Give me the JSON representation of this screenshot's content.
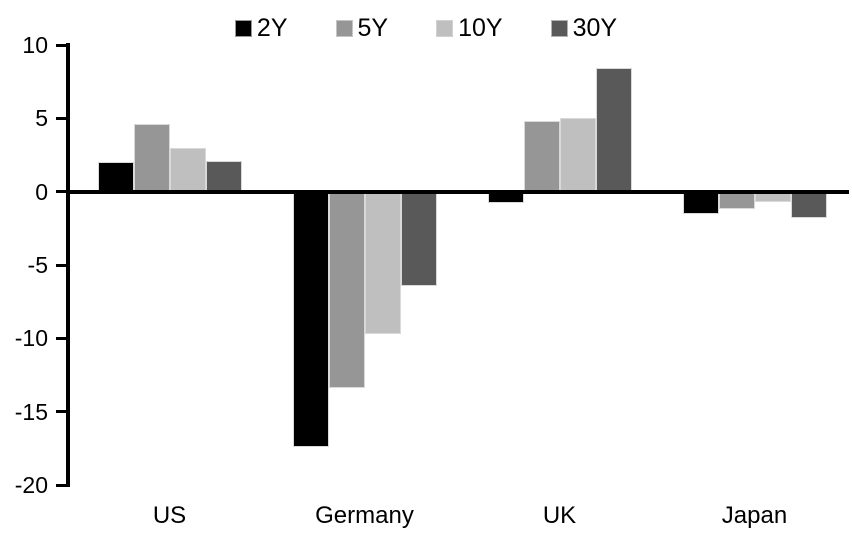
{
  "chart_data": {
    "type": "bar",
    "title": "",
    "categories": [
      "US",
      "Germany",
      "UK",
      "Japan"
    ],
    "series": [
      {
        "name": "2Y",
        "color": "#000000",
        "values": [
          2.0,
          -17.4,
          -0.8,
          -1.5
        ]
      },
      {
        "name": "5Y",
        "color": "#969696",
        "values": [
          4.6,
          -13.4,
          4.8,
          -1.2
        ]
      },
      {
        "name": "10Y",
        "color": "#BFBFBF",
        "values": [
          3.0,
          -9.7,
          5.0,
          -0.7
        ]
      },
      {
        "name": "30Y",
        "color": "#595959",
        "values": [
          2.1,
          -6.4,
          8.4,
          -1.8
        ]
      }
    ],
    "ylim": [
      -20,
      10
    ],
    "yticks": [
      10,
      5,
      0,
      -5,
      -10,
      -15,
      -20
    ],
    "xlabel": "",
    "ylabel": "",
    "legend_position": "top",
    "grid": false,
    "axis_color": "#000000",
    "bar_outline_color": "#D9D9D9",
    "background_color": "#FFFFFF"
  }
}
